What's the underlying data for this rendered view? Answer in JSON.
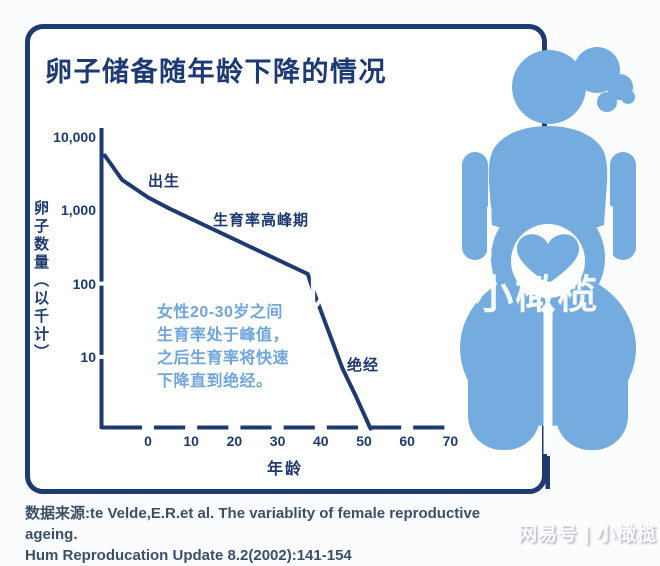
{
  "title": "卵子储备随年龄下降的情况",
  "chart_data": {
    "type": "line",
    "title": "卵子储备随年龄下降的情况",
    "xlabel": "年龄",
    "ylabel": "卵子数量（以千计）",
    "y_scale": "log",
    "xlim": [
      -10,
      70
    ],
    "ylim": [
      1,
      10000
    ],
    "x_ticks": [
      0,
      10,
      20,
      30,
      40,
      50,
      60,
      70
    ],
    "y_tick_labels": [
      "10,000",
      "1,000",
      "100",
      "10"
    ],
    "grid": false,
    "legend": false,
    "line_color": "#1e3a70",
    "series": [
      {
        "name": "卵子数量(千)",
        "points": [
          {
            "age": -10,
            "value": 5600
          },
          {
            "age": -6,
            "value": 2600
          },
          {
            "age": 0,
            "value": 1500
          },
          {
            "age": 5,
            "value": 1050
          },
          {
            "age": 37,
            "value": 135
          },
          {
            "age": 38,
            "value": 88
          },
          {
            "age": 45,
            "value": 7
          },
          {
            "age": 48,
            "value": 3
          },
          {
            "age": 51.5,
            "value": 1.05
          }
        ]
      }
    ],
    "annotations": [
      {
        "label": "出生",
        "near_age": 0
      },
      {
        "label": "生育率高峰期",
        "near_age": "20-30"
      },
      {
        "label": "绝经",
        "near_age": 50
      }
    ],
    "note": "女性20-30岁之间\n生育率处于峰值，\n之后生育率将快速\n下降直到绝经。"
  },
  "footer": {
    "source_line1": "数据来源:te Velde,E.R.et al. The variablity of female reproductive ageing.",
    "source_line2": "Hum Reproducation Update 8.2(2002):141-154"
  },
  "watermark": {
    "text": "网易号 | 小橄榄"
  },
  "colors": {
    "navy": "#1e3a70",
    "figure_blue": "#74ACDF",
    "note_blue": "#6FA6DB",
    "caption_gray_blue": "#3d4f68",
    "background": "#fbfcfd"
  }
}
